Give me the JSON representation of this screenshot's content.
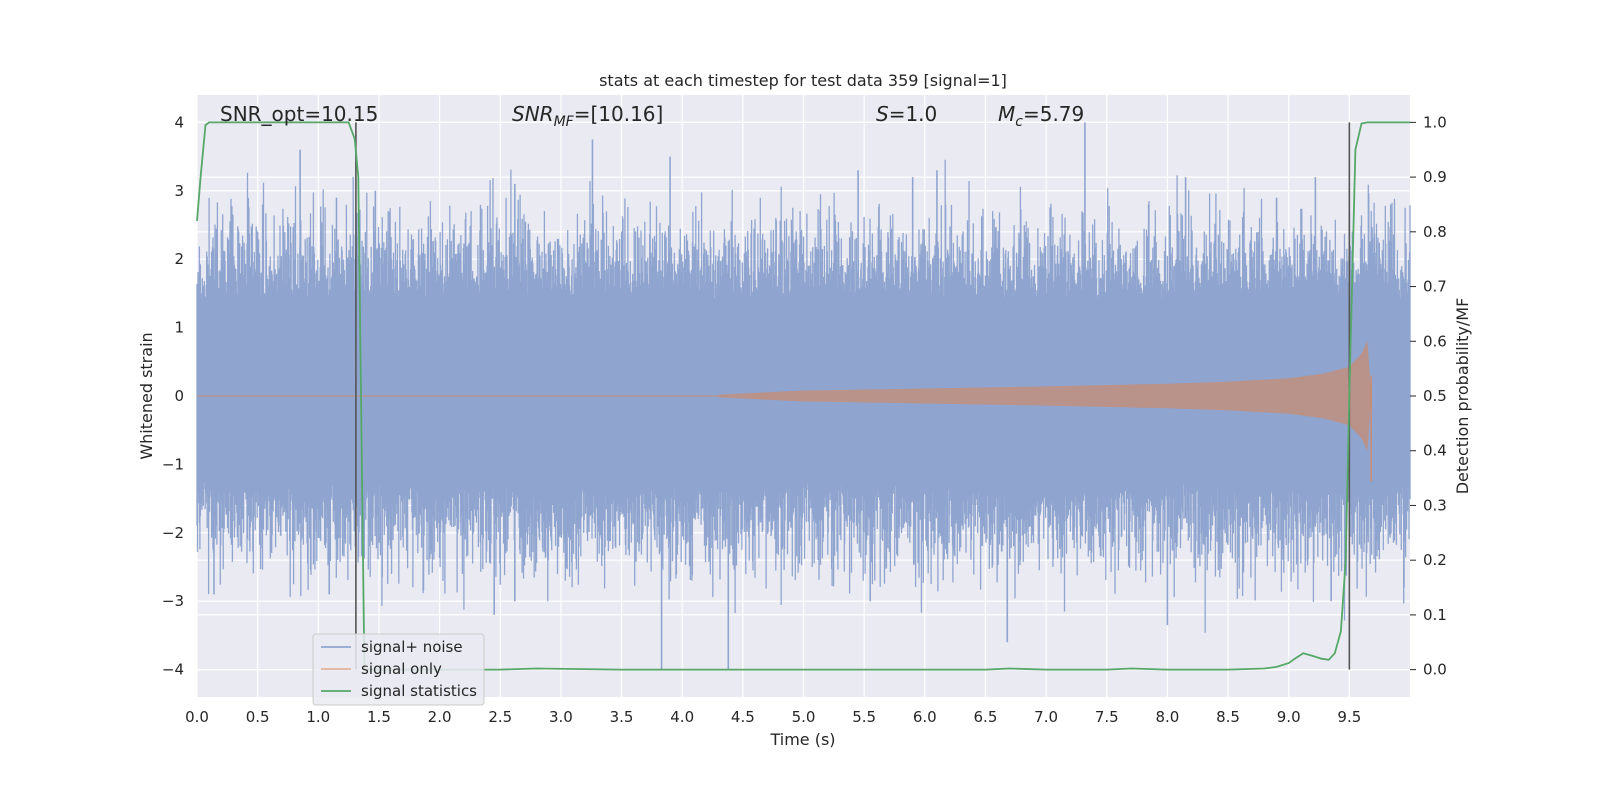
{
  "chart_data": {
    "type": "line",
    "title": "stats at each timestep for test data 359 [signal=1]",
    "xlabel": "Time (s)",
    "ylabel": "Whitened strain",
    "ylabel_right": "Detection probability/MF",
    "xlim": [
      0,
      10
    ],
    "ylim": [
      -4.4,
      4.4
    ],
    "ylim_right": [
      -0.05,
      1.05
    ],
    "grid": true,
    "legend_position": "lower-left",
    "x_ticks": [
      "0.0",
      "0.5",
      "1.0",
      "1.5",
      "2.0",
      "2.5",
      "3.0",
      "3.5",
      "4.0",
      "4.5",
      "5.0",
      "5.5",
      "6.0",
      "6.5",
      "7.0",
      "7.5",
      "8.0",
      "8.5",
      "9.0",
      "9.5"
    ],
    "y_ticks": [
      "−4",
      "−3",
      "−2",
      "−1",
      "0",
      "1",
      "2",
      "3",
      "4"
    ],
    "y_right_ticks": [
      "0.0",
      "0.1",
      "0.2",
      "0.3",
      "0.4",
      "0.5",
      "0.6",
      "0.7",
      "0.8",
      "0.9",
      "1.0"
    ],
    "annotations": [
      {
        "text": "SNR_opt=10.15"
      },
      {
        "text_main": "SNR",
        "text_sub": "MF",
        "text_tail": "=[10.16]"
      },
      {
        "text_main": "S",
        "text_tail": "=1.0"
      },
      {
        "text_main": "M",
        "text_sub": "c",
        "text_tail": "=5.79"
      }
    ],
    "vlines_x": [
      1.31,
      9.5
    ],
    "series": [
      {
        "name": "signal+ noise",
        "color": "#8fa5cf",
        "description_envelope": {
          "x": [
            0.0,
            1.0,
            2.0,
            3.0,
            4.0,
            5.0,
            6.0,
            7.0,
            8.0,
            9.0,
            10.0
          ],
          "upper": [
            2.4,
            2.5,
            2.6,
            2.6,
            2.5,
            2.5,
            2.6,
            2.5,
            2.5,
            2.6,
            2.5
          ],
          "lower": [
            -2.2,
            -2.3,
            -2.4,
            -2.4,
            -2.3,
            -2.3,
            -2.4,
            -2.4,
            -2.3,
            -2.4,
            -2.3
          ]
        },
        "peaks_up": [
          [
            0.85,
            3.6
          ],
          [
            1.15,
            2.9
          ],
          [
            1.47,
            3.0
          ],
          [
            2.62,
            3.1
          ],
          [
            3.26,
            3.75
          ],
          [
            3.9,
            3.5
          ],
          [
            5.45,
            3.3
          ],
          [
            5.9,
            3.2
          ],
          [
            6.1,
            3.3
          ],
          [
            7.32,
            4.0
          ],
          [
            8.15,
            3.2
          ],
          [
            8.9,
            2.9
          ],
          [
            9.22,
            3.2
          ],
          [
            9.5,
            2.7
          ]
        ],
        "peaks_down": [
          [
            0.14,
            -2.9
          ],
          [
            1.09,
            -2.9
          ],
          [
            2.45,
            -3.2
          ],
          [
            2.62,
            -3.0
          ],
          [
            3.83,
            -4.0
          ],
          [
            4.38,
            -4.0
          ],
          [
            5.55,
            -3.0
          ],
          [
            6.68,
            -3.6
          ],
          [
            8.0,
            -3.35
          ],
          [
            9.35,
            -3.0
          ],
          [
            9.95,
            -2.8
          ]
        ]
      },
      {
        "name": "signal only",
        "color": "#dd8452",
        "x": [
          4.3,
          5.0,
          6.0,
          7.0,
          8.0,
          8.5,
          9.0,
          9.3,
          9.5,
          9.6,
          9.65,
          9.68
        ],
        "amplitude": [
          0.02,
          0.08,
          0.11,
          0.14,
          0.18,
          0.21,
          0.26,
          0.33,
          0.43,
          0.62,
          0.8,
          0.0
        ]
      },
      {
        "name": "signal statistics",
        "color": "#55a868",
        "axis": "right",
        "x": [
          0.0,
          0.03,
          0.07,
          0.1,
          0.3,
          0.6,
          0.9,
          1.1,
          1.25,
          1.3,
          1.33,
          1.38,
          1.45,
          2.0,
          2.5,
          2.8,
          3.5,
          4.5,
          5.5,
          6.5,
          6.7,
          7.0,
          7.5,
          7.7,
          8.0,
          8.5,
          8.8,
          8.9,
          9.0,
          9.05,
          9.12,
          9.2,
          9.27,
          9.33,
          9.38,
          9.43,
          9.47,
          9.5,
          9.55,
          9.6,
          9.65,
          9.7,
          10.0
        ],
        "values": [
          0.82,
          0.9,
          0.995,
          1.0,
          1.0,
          1.0,
          1.0,
          1.0,
          1.0,
          0.97,
          0.9,
          0.0,
          0.0,
          0.0,
          0.0,
          0.002,
          0.0,
          0.0,
          0.0,
          0.0,
          0.002,
          0.0,
          0.0,
          0.002,
          0.0,
          0.0,
          0.002,
          0.005,
          0.012,
          0.02,
          0.03,
          0.025,
          0.02,
          0.018,
          0.03,
          0.07,
          0.2,
          0.5,
          0.95,
          0.998,
          1.0,
          1.0,
          1.0
        ]
      }
    ]
  }
}
